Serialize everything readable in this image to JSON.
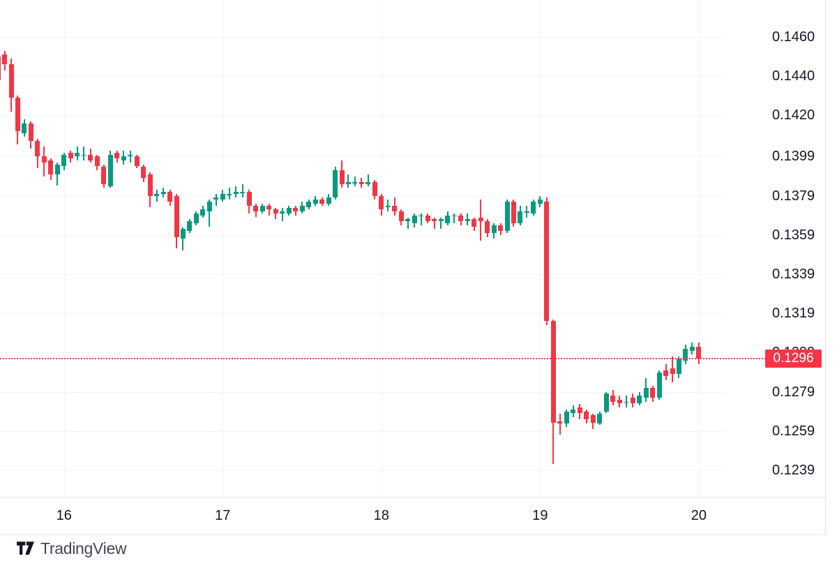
{
  "branding": {
    "logo_text": "TradingView"
  },
  "chart_data": {
    "type": "candlestick",
    "timeframe_hint": "hourly candles",
    "grid": true,
    "colors": {
      "up": "#089981",
      "down": "#F23645",
      "grid": "#f0f3fa",
      "axis_text": "#131722",
      "axis_border": "#e0e3eb"
    },
    "x_axis": {
      "labels": [
        "16",
        "17",
        "18",
        "19",
        "20"
      ],
      "tick_candle_indices": [
        10,
        34,
        58,
        82,
        106
      ],
      "position": "bottom"
    },
    "y_axis": {
      "side": "right",
      "labels": [
        "0.1460",
        "0.1440",
        "0.1420",
        "0.1399",
        "0.1379",
        "0.1359",
        "0.1339",
        "0.1319",
        "0.1299",
        "0.1279",
        "0.1259",
        "0.1239"
      ],
      "range": [
        0.1239,
        0.146
      ]
    },
    "last_price": {
      "text": "0.1296",
      "value": 0.1296,
      "color": "#F23645",
      "line_style": "dotted"
    },
    "candles_format": [
      "open",
      "high",
      "low",
      "close"
    ],
    "candles": [
      [
        0.145,
        0.1452,
        0.1436,
        0.1438
      ],
      [
        0.1451,
        0.1453,
        0.1443,
        0.1446
      ],
      [
        0.1446,
        0.1449,
        0.1422,
        0.1429
      ],
      [
        0.1429,
        0.143,
        0.1405,
        0.1412
      ],
      [
        0.1411,
        0.1418,
        0.1409,
        0.1416
      ],
      [
        0.1416,
        0.1417,
        0.1403,
        0.1407
      ],
      [
        0.1407,
        0.1408,
        0.1393,
        0.1399
      ],
      [
        0.1399,
        0.1404,
        0.1389,
        0.1396
      ],
      [
        0.1397,
        0.1398,
        0.1387,
        0.139
      ],
      [
        0.139,
        0.1396,
        0.1384,
        0.1395
      ],
      [
        0.1394,
        0.1401,
        0.1392,
        0.14
      ],
      [
        0.1401,
        0.1402,
        0.1396,
        0.1398
      ],
      [
        0.1399,
        0.1404,
        0.1397,
        0.1401
      ],
      [
        0.14,
        0.1404,
        0.1397,
        0.14
      ],
      [
        0.14,
        0.1403,
        0.1396,
        0.1397
      ],
      [
        0.1399,
        0.14,
        0.1392,
        0.1394
      ],
      [
        0.1394,
        0.1395,
        0.1383,
        0.1385
      ],
      [
        0.1384,
        0.1402,
        0.1383,
        0.14
      ],
      [
        0.1401,
        0.1402,
        0.1396,
        0.1398
      ],
      [
        0.1397,
        0.1402,
        0.1395,
        0.1399
      ],
      [
        0.1399,
        0.1402,
        0.1396,
        0.14
      ],
      [
        0.1399,
        0.14,
        0.1393,
        0.1394
      ],
      [
        0.1394,
        0.1395,
        0.1386,
        0.1388
      ],
      [
        0.139,
        0.1391,
        0.1373,
        0.1379
      ],
      [
        0.1379,
        0.1382,
        0.1376,
        0.138
      ],
      [
        0.138,
        0.1383,
        0.1378,
        0.1381
      ],
      [
        0.1381,
        0.1382,
        0.1374,
        0.1376
      ],
      [
        0.1379,
        0.138,
        0.1352,
        0.1358
      ],
      [
        0.1357,
        0.1363,
        0.1351,
        0.1362
      ],
      [
        0.1361,
        0.1367,
        0.136,
        0.1366
      ],
      [
        0.1365,
        0.1371,
        0.1364,
        0.137
      ],
      [
        0.1369,
        0.1374,
        0.1368,
        0.1372
      ],
      [
        0.1371,
        0.1377,
        0.1363,
        0.1376
      ],
      [
        0.1377,
        0.138,
        0.1374,
        0.1378
      ],
      [
        0.1377,
        0.1382,
        0.1376,
        0.138
      ],
      [
        0.138,
        0.1383,
        0.1377,
        0.138
      ],
      [
        0.138,
        0.1384,
        0.1378,
        0.1381
      ],
      [
        0.1381,
        0.1385,
        0.1378,
        0.1381
      ],
      [
        0.1381,
        0.1382,
        0.137,
        0.1374
      ],
      [
        0.1374,
        0.1375,
        0.1368,
        0.1371
      ],
      [
        0.1371,
        0.1375,
        0.137,
        0.1374
      ],
      [
        0.1374,
        0.1375,
        0.1369,
        0.1372
      ],
      [
        0.1372,
        0.1373,
        0.1367,
        0.137
      ],
      [
        0.137,
        0.1373,
        0.1366,
        0.1371
      ],
      [
        0.137,
        0.1374,
        0.1369,
        0.1373
      ],
      [
        0.1373,
        0.1374,
        0.1369,
        0.1371
      ],
      [
        0.1371,
        0.1376,
        0.137,
        0.1374
      ],
      [
        0.1373,
        0.1377,
        0.1372,
        0.1376
      ],
      [
        0.1375,
        0.1379,
        0.1374,
        0.1377
      ],
      [
        0.1377,
        0.1378,
        0.1374,
        0.1375
      ],
      [
        0.1375,
        0.138,
        0.1374,
        0.1378
      ],
      [
        0.1378,
        0.1394,
        0.1377,
        0.1392
      ],
      [
        0.1392,
        0.1397,
        0.1383,
        0.1385
      ],
      [
        0.1385,
        0.139,
        0.1383,
        0.1386
      ],
      [
        0.1386,
        0.1389,
        0.1384,
        0.1386
      ],
      [
        0.1386,
        0.1388,
        0.1383,
        0.1385
      ],
      [
        0.1385,
        0.139,
        0.1384,
        0.1386
      ],
      [
        0.1386,
        0.1387,
        0.1377,
        0.1379
      ],
      [
        0.1379,
        0.138,
        0.1369,
        0.1372
      ],
      [
        0.1373,
        0.1377,
        0.1371,
        0.1374
      ],
      [
        0.1374,
        0.1378,
        0.1369,
        0.1371
      ],
      [
        0.1371,
        0.1372,
        0.1364,
        0.1366
      ],
      [
        0.1366,
        0.1368,
        0.1362,
        0.1367
      ],
      [
        0.1365,
        0.137,
        0.1363,
        0.1369
      ],
      [
        0.1369,
        0.137,
        0.1364,
        0.1369
      ],
      [
        0.1369,
        0.137,
        0.1365,
        0.1366
      ],
      [
        0.1367,
        0.1368,
        0.1362,
        0.1366
      ],
      [
        0.1366,
        0.1368,
        0.1362,
        0.1367
      ],
      [
        0.1365,
        0.1371,
        0.1364,
        0.1369
      ],
      [
        0.1369,
        0.137,
        0.1365,
        0.1369
      ],
      [
        0.1369,
        0.137,
        0.1364,
        0.1366
      ],
      [
        0.1366,
        0.137,
        0.1364,
        0.1367
      ],
      [
        0.1367,
        0.1368,
        0.1361,
        0.1363
      ],
      [
        0.1368,
        0.1377,
        0.1356,
        0.1366
      ],
      [
        0.1366,
        0.1367,
        0.1358,
        0.136
      ],
      [
        0.136,
        0.1365,
        0.1357,
        0.1364
      ],
      [
        0.1364,
        0.1365,
        0.1359,
        0.1361
      ],
      [
        0.1361,
        0.1377,
        0.136,
        0.1376
      ],
      [
        0.1376,
        0.1377,
        0.1363,
        0.1365
      ],
      [
        0.1365,
        0.1374,
        0.1364,
        0.1371
      ],
      [
        0.1371,
        0.1374,
        0.1368,
        0.1371
      ],
      [
        0.137,
        0.1377,
        0.1369,
        0.1376
      ],
      [
        0.1375,
        0.1379,
        0.1373,
        0.1377
      ],
      [
        0.1376,
        0.1378,
        0.1313,
        0.1315
      ],
      [
        0.1315,
        0.1316,
        0.1242,
        0.1263
      ],
      [
        0.1264,
        0.1268,
        0.1257,
        0.1263
      ],
      [
        0.1263,
        0.127,
        0.1261,
        0.1269
      ],
      [
        0.1268,
        0.1272,
        0.1266,
        0.127
      ],
      [
        0.1271,
        0.1273,
        0.1265,
        0.1268
      ],
      [
        0.1269,
        0.127,
        0.1263,
        0.1265
      ],
      [
        0.1267,
        0.1268,
        0.126,
        0.1263
      ],
      [
        0.1263,
        0.1269,
        0.1262,
        0.1268
      ],
      [
        0.1269,
        0.1279,
        0.1268,
        0.1278
      ],
      [
        0.1277,
        0.128,
        0.1272,
        0.1274
      ],
      [
        0.1275,
        0.1277,
        0.1271,
        0.1273
      ],
      [
        0.1274,
        0.1277,
        0.1271,
        0.1274
      ],
      [
        0.1276,
        0.1278,
        0.1271,
        0.1273
      ],
      [
        0.1273,
        0.1279,
        0.1272,
        0.1277
      ],
      [
        0.1276,
        0.1286,
        0.1274,
        0.1281
      ],
      [
        0.1281,
        0.1282,
        0.1274,
        0.1276
      ],
      [
        0.1276,
        0.129,
        0.1275,
        0.1289
      ],
      [
        0.129,
        0.1293,
        0.1285,
        0.1287
      ],
      [
        0.1291,
        0.1297,
        0.1284,
        0.1288
      ],
      [
        0.1288,
        0.1297,
        0.1286,
        0.1296
      ],
      [
        0.1295,
        0.1303,
        0.1293,
        0.1301
      ],
      [
        0.13,
        0.1304,
        0.1298,
        0.1302
      ],
      [
        0.1302,
        0.1304,
        0.1293,
        0.1296
      ]
    ]
  }
}
